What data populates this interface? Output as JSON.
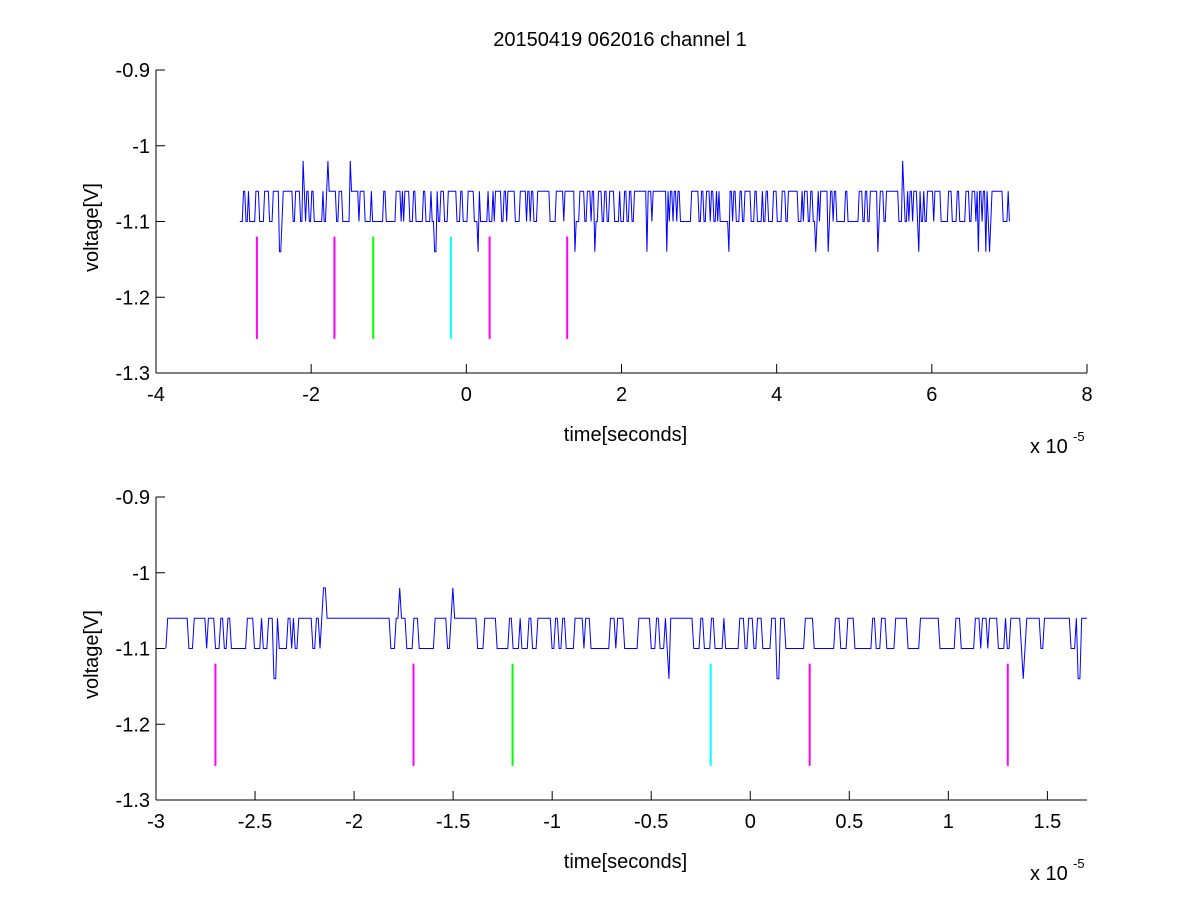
{
  "figure": {
    "title": "20150419 062016 channel 1"
  },
  "chart_data": [
    {
      "type": "line",
      "title": "20150419 062016 channel 1",
      "xlabel": "time[seconds]",
      "ylabel": "voltage[V]",
      "x_exponent": "x 10",
      "x_exponent_power": "-5",
      "xlim": [
        -4,
        8
      ],
      "ylim": [
        -1.3,
        -0.9
      ],
      "xticks": [
        -4,
        -2,
        0,
        2,
        4,
        6,
        8
      ],
      "xtick_labels": [
        "-4",
        "-2",
        "0",
        "2",
        "4",
        "6",
        "8"
      ],
      "yticks": [
        -1.3,
        -1.2,
        -1.1,
        -1.0,
        -0.9
      ],
      "ytick_labels": [
        "-1.3",
        "-1.2",
        "-1.1",
        "-1",
        "-0.9"
      ],
      "grid": false,
      "signal": {
        "color": "#0000ff",
        "x_range": [
          -2.92,
          7.0
        ],
        "base": -1.1,
        "levels": [
          -1.1,
          -1.06
        ],
        "upper_spikes": [
          {
            "x": -2.1,
            "y": -1.02
          },
          {
            "x": -1.78,
            "y": -1.02
          },
          {
            "x": -1.5,
            "y": -1.02
          },
          {
            "x": 5.63,
            "y": -1.02
          }
        ],
        "lower_spikes": [
          {
            "x": -2.4,
            "y": -1.14
          },
          {
            "x": -0.4,
            "y": -1.14
          },
          {
            "x": 0.15,
            "y": -1.14
          },
          {
            "x": 1.4,
            "y": -1.14
          },
          {
            "x": 1.65,
            "y": -1.14
          },
          {
            "x": 2.33,
            "y": -1.14
          },
          {
            "x": 2.58,
            "y": -1.14
          },
          {
            "x": 3.38,
            "y": -1.14
          },
          {
            "x": 4.5,
            "y": -1.14
          },
          {
            "x": 4.67,
            "y": -1.14
          },
          {
            "x": 5.3,
            "y": -1.14
          },
          {
            "x": 5.83,
            "y": -1.14
          },
          {
            "x": 6.6,
            "y": -1.14
          },
          {
            "x": 6.7,
            "y": -1.14
          },
          {
            "x": 6.75,
            "y": -1.14
          }
        ]
      },
      "markers": [
        {
          "x": -2.7,
          "y_top": -1.12,
          "y_bottom": -1.255,
          "color": "#ff00ff"
        },
        {
          "x": -1.7,
          "y_top": -1.12,
          "y_bottom": -1.255,
          "color": "#ff00ff"
        },
        {
          "x": -1.2,
          "y_top": -1.12,
          "y_bottom": -1.255,
          "color": "#00ff00"
        },
        {
          "x": -0.2,
          "y_top": -1.12,
          "y_bottom": -1.255,
          "color": "#00ffff"
        },
        {
          "x": 0.3,
          "y_top": -1.12,
          "y_bottom": -1.255,
          "color": "#ff00ff"
        },
        {
          "x": 1.3,
          "y_top": -1.12,
          "y_bottom": -1.255,
          "color": "#ff00ff"
        }
      ]
    },
    {
      "type": "line",
      "title": "",
      "xlabel": "time[seconds]",
      "ylabel": "voltage[V]",
      "x_exponent": "x 10",
      "x_exponent_power": "-5",
      "xlim": [
        -3,
        1.7
      ],
      "ylim": [
        -1.3,
        -0.9
      ],
      "xticks": [
        -3,
        -2.5,
        -2,
        -1.5,
        -1,
        -0.5,
        0,
        0.5,
        1,
        1.5
      ],
      "xtick_labels": [
        "-3",
        "-2.5",
        "-2",
        "-1.5",
        "-1",
        "-0.5",
        "0",
        "0.5",
        "1",
        "1.5"
      ],
      "yticks": [
        -1.3,
        -1.2,
        -1.1,
        -1.0,
        -0.9
      ],
      "ytick_labels": [
        "-1.3",
        "-1.2",
        "-1.1",
        "-1",
        "-0.9"
      ],
      "grid": false,
      "signal": {
        "color": "#0000ff",
        "x_range": [
          -2.95,
          1.7
        ],
        "base": -1.1,
        "levels": [
          -1.1,
          -1.06
        ],
        "upper_spikes": [
          {
            "x": -2.15,
            "y": -1.02
          },
          {
            "x": -1.77,
            "y": -1.02
          },
          {
            "x": -1.5,
            "y": -1.02
          }
        ],
        "lower_spikes": [
          {
            "x": -2.4,
            "y": -1.14
          },
          {
            "x": -0.41,
            "y": -1.14
          },
          {
            "x": 0.14,
            "y": -1.14
          },
          {
            "x": 1.38,
            "y": -1.14
          },
          {
            "x": 1.66,
            "y": -1.14
          }
        ]
      },
      "markers": [
        {
          "x": -2.7,
          "y_top": -1.12,
          "y_bottom": -1.255,
          "color": "#ff00ff"
        },
        {
          "x": -1.7,
          "y_top": -1.12,
          "y_bottom": -1.255,
          "color": "#ff00ff"
        },
        {
          "x": -1.2,
          "y_top": -1.12,
          "y_bottom": -1.255,
          "color": "#00ff00"
        },
        {
          "x": -0.2,
          "y_top": -1.12,
          "y_bottom": -1.255,
          "color": "#00ffff"
        },
        {
          "x": 0.3,
          "y_top": -1.12,
          "y_bottom": -1.255,
          "color": "#ff00ff"
        },
        {
          "x": 1.3,
          "y_top": -1.12,
          "y_bottom": -1.255,
          "color": "#ff00ff"
        }
      ]
    }
  ]
}
